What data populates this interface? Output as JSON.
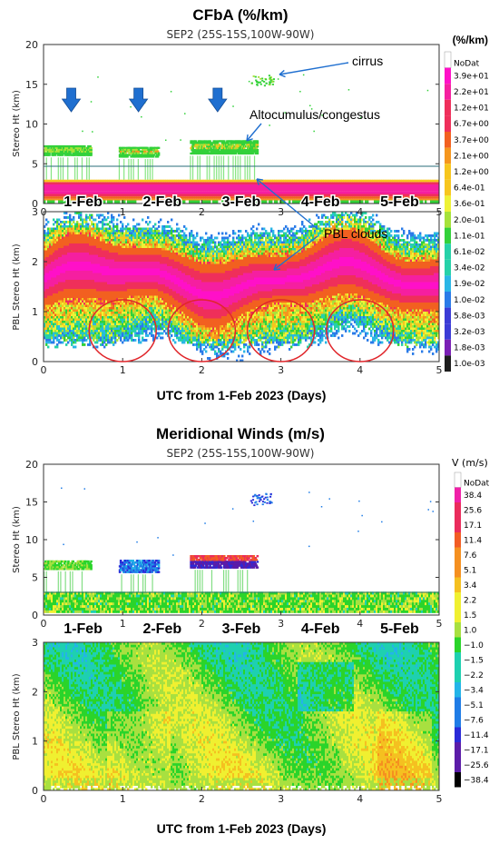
{
  "colors": {
    "axis": "#333333",
    "annotation_arrow": "#1f6fd0",
    "circle": "#e0262b",
    "ramp_cf": [
      "#1e1e1e",
      "#7a1fb5",
      "#3b3bd6",
      "#2a7be8",
      "#2ab6e6",
      "#26d1a8",
      "#33d13a",
      "#a6e23a",
      "#eef236",
      "#f7c61e",
      "#f5961e",
      "#f26020",
      "#ef2f5a",
      "#f51fa0",
      "#ff10c8"
    ],
    "ramp_v": [
      "#000000",
      "#5b1ca8",
      "#2a2ad8",
      "#1f7ce6",
      "#23b4e8",
      "#1ed0b0",
      "#2ad42a",
      "#a8e040",
      "#f0f030",
      "#f5c020",
      "#f59020",
      "#f25c24",
      "#ea2c5c",
      "#f020a8"
    ]
  },
  "chart_data": [
    {
      "type": "heatmap",
      "panel": "top",
      "title": "CFbA (%/km)",
      "subtitle": "SEP2 (25S-15S,100W-90W)",
      "units_label": "(%/km)",
      "xlabel": "UTC from 1-Feb 2023 (Days)",
      "x_ticks": [
        0,
        1,
        2,
        3,
        4,
        5
      ],
      "day_labels": [
        "1-Feb",
        "2-Feb",
        "3-Feb",
        "4-Feb",
        "5-Feb"
      ],
      "upper": {
        "ylabel": "Stereo Ht (km)",
        "ylim": [
          0,
          20
        ],
        "y_ticks": [
          0,
          5,
          10,
          15,
          20
        ]
      },
      "lower": {
        "ylabel": "PBL Stereo Ht (km)",
        "ylim": [
          0,
          3
        ],
        "y_ticks": [
          0,
          1,
          2,
          3
        ]
      },
      "colorbar": [
        "NoDat",
        "3.9e+01",
        "2.2e+01",
        "1.2e+01",
        "6.7e+00",
        "3.7e+00",
        "2.1e+00",
        "1.2e+00",
        "6.4e-01",
        "3.6e-01",
        "2.0e-01",
        "1.1e-01",
        "6.1e-02",
        "3.4e-02",
        "1.9e-02",
        "1.0e-02",
        "5.8e-03",
        "3.2e-03",
        "1.8e-03",
        "1.0e-03"
      ],
      "annotations": {
        "cirrus": "cirrus",
        "altocumulus": "Altocumulus/congestus",
        "pbl": "PBL clouds"
      },
      "arrow_days": [
        0.35,
        1.2,
        2.2
      ],
      "circle_days": [
        1,
        2,
        3,
        4
      ]
    },
    {
      "type": "heatmap",
      "panel": "bottom",
      "title": "Meridional Winds (m/s)",
      "subtitle": "SEP2 (25S-15S,100W-90W)",
      "units_label": "V (m/s)",
      "xlabel": "UTC from 1-Feb 2023 (Days)",
      "x_ticks": [
        0,
        1,
        2,
        3,
        4,
        5
      ],
      "day_labels": [
        "1-Feb",
        "2-Feb",
        "3-Feb",
        "4-Feb",
        "5-Feb"
      ],
      "upper": {
        "ylabel": "Stereo Ht (km)",
        "ylim": [
          0,
          20
        ],
        "y_ticks": [
          0,
          5,
          10,
          15,
          20
        ]
      },
      "lower": {
        "ylabel": "PBL Stereo Ht (km)",
        "ylim": [
          0,
          3
        ],
        "y_ticks": [
          0,
          1,
          2,
          3
        ]
      },
      "colorbar": [
        "NoDat",
        "38.4",
        "25.6",
        "17.1",
        "11.4",
        "7.6",
        "5.1",
        "3.4",
        "2.2",
        "1.5",
        "1.0",
        "−1.0",
        "−1.5",
        "−2.2",
        "−3.4",
        "−5.1",
        "−7.6",
        "−11.4",
        "−17.1",
        "−25.6",
        "−38.4"
      ]
    }
  ]
}
